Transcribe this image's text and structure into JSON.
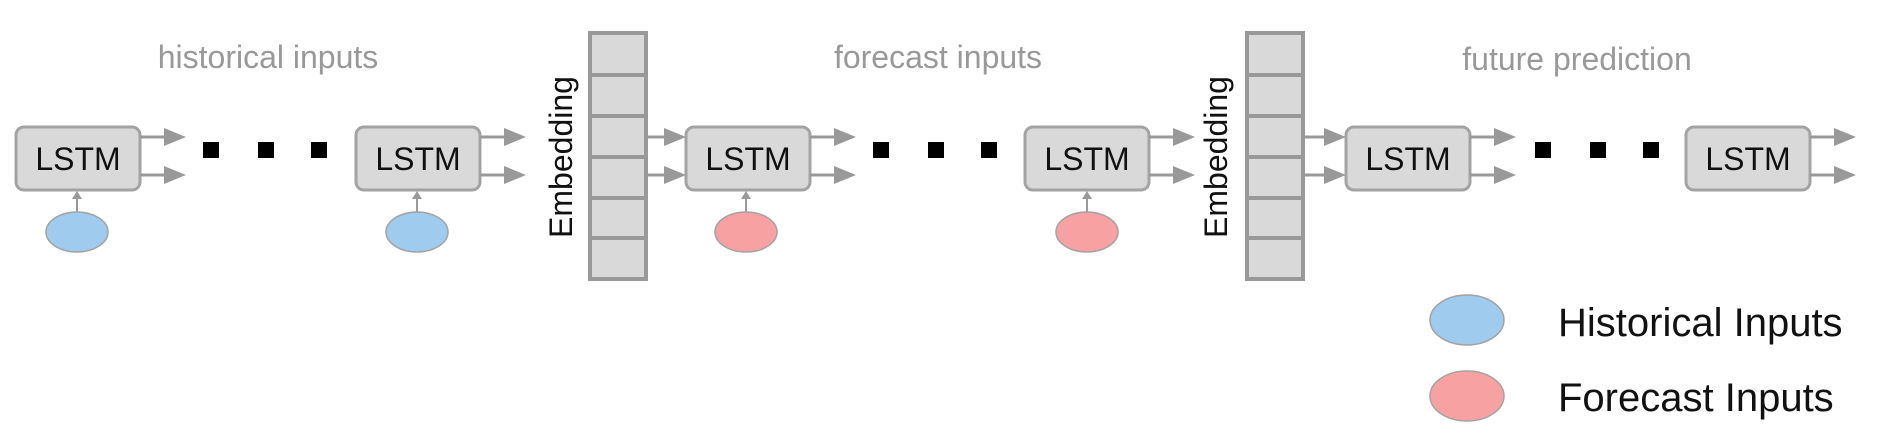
{
  "sections": {
    "historical_title": "historical inputs",
    "forecast_title": "forecast inputs",
    "future_title": "future prediction"
  },
  "lstm_label": "LSTM",
  "embedding_label": "Embedding",
  "legend": {
    "historical": {
      "label": "Historical Inputs",
      "color": "#9ecbee"
    },
    "forecast": {
      "label": "Forecast Inputs",
      "color": "#f7a1a3"
    }
  },
  "colors": {
    "box_fill": "#d9d9d9",
    "box_stroke": "#a3a3a3",
    "arrow": "#999999",
    "section_title": "#999999"
  }
}
